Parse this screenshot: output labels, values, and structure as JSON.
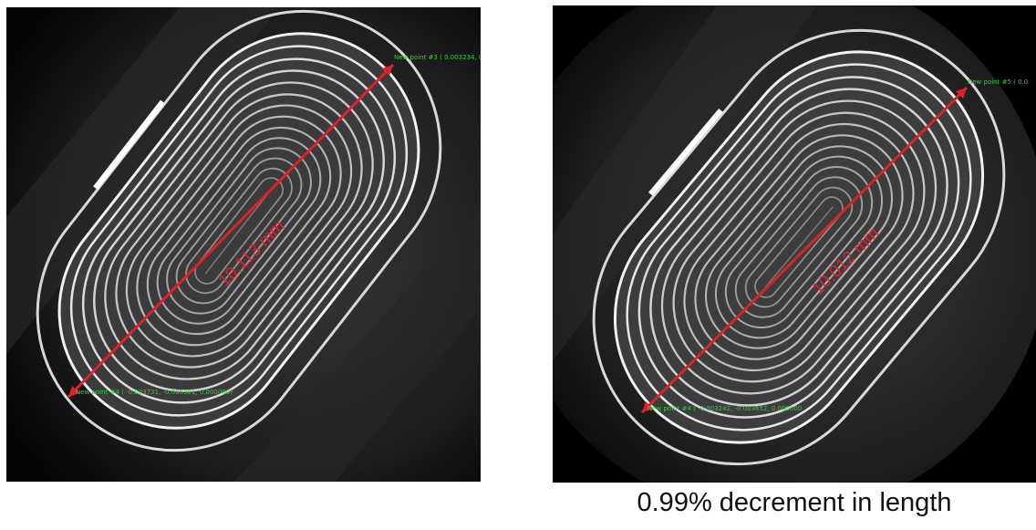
{
  "left_scan": {
    "measurement_label": "10.113 mm",
    "start_point_label": "New point #4 ( -0.003731, -0.005301, 0.000000)",
    "end_point_label": "New point #3 ( 0.003234, 0"
  },
  "right_scan": {
    "measurement_label": "10.012 mm",
    "start_point_label": "New point #4 ( -0.003242, -0.003652, 0.000000",
    "end_point_label": "New point #5 ( 0.0"
  },
  "caption": "0.99% decrement in length",
  "colors": {
    "measure_line": "#e2202a",
    "point_label": "#2fd23a",
    "background": "#000000",
    "layer_highlight": "#f2f2f2"
  }
}
